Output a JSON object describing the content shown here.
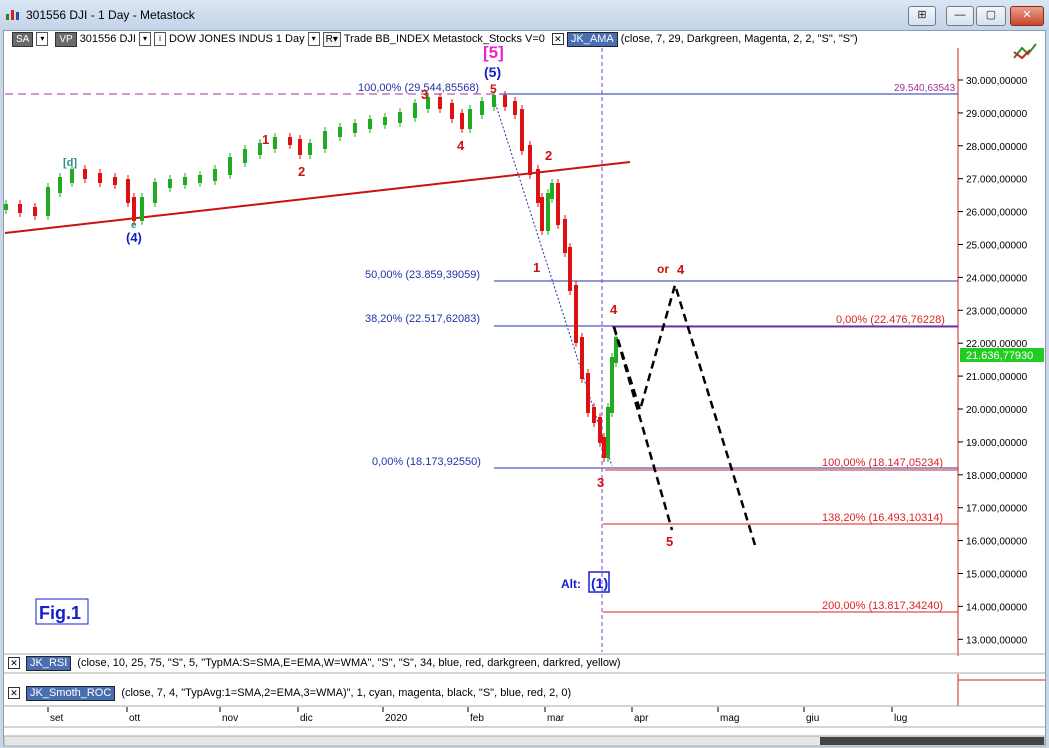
{
  "window": {
    "title": "301556 DJI - 1 Day - Metastock",
    "buttons": [
      "⊞",
      "—",
      "▢",
      "✕"
    ]
  },
  "toolbar": {
    "sa": "SA",
    "vp": "VP",
    "symbol": "301556 DJI",
    "name": "DOW JONES INDUS",
    "period": "1 Day",
    "r": "R",
    "params": "Trade  BB_INDEX  Metastock_Stocks  V=0",
    "indicator": "JK_AMA",
    "indicator_params": "(close,  7,  29,  Darkgreen,  Magenta,  2,  2,  \"S\",  \"S\")"
  },
  "price_scale": {
    "ticks": [
      "30.000,00000",
      "29.000,00000",
      "28.000,00000",
      "27.000,00000",
      "26.000,00000",
      "25.000,00000",
      "24.000,00000",
      "23.000,00000",
      "22.000,00000",
      "21.000,00000",
      "20.000,00000",
      "19.000,00000",
      "18.000,00000",
      "17.000,00000",
      "16.000,00000",
      "15.000,00000",
      "14.000,00000",
      "13.000,00000"
    ],
    "current": "21.636,77930"
  },
  "time_axis": [
    "set",
    "ott",
    "nov",
    "dic",
    "2020",
    "feb",
    "mar",
    "apr",
    "mag",
    "giu",
    "lug"
  ],
  "fib_levels": {
    "f100": "100,00% (29.544,85568)",
    "f50": "50,00% (23.859,39059)",
    "f382": "38,20% (22.517,62083)",
    "f0": "0,00% (18.173,92550)",
    "top_right": "29.540,63543",
    "p0": "0,00% (22.476,76228)",
    "p100": "100,00% (18.147,05234)",
    "p1382": "138,20% (16.493,10314)",
    "p200": "200,00% (13.817,34240)"
  },
  "wave_labels": {
    "big5": "[5]",
    "w5": "(5)",
    "d": "[d]",
    "e": "e",
    "w4": "(4)",
    "w1": "1",
    "w2": "2",
    "w3": "3",
    "w4b": "4",
    "r2": "2",
    "r1": "1",
    "r4": "4",
    "or4": "or",
    "or4b": "4",
    "r3": "3",
    "r5": "5",
    "alt": "Alt:",
    "alt1": "(1)"
  },
  "fig_label": "Fig.1",
  "indicators": [
    {
      "name": "JK_RSI",
      "params": "(close,  10,  25,  75,  \"S\",  5,  \"TypMA:S=SMA,E=EMA,W=WMA\",  \"S\",  \"S\",  34,  blue,  red,  darkgreen,  darkred,  yellow)"
    },
    {
      "name": "JK_Smoth_ROC",
      "params": "(close,  7,  4,  \"TypAvg:1=SMA,2=EMA,3=WMA)\",  1,  cyan,  magenta,  black,  \"S\",  blue,  red,  2,  0)"
    }
  ],
  "colors": {
    "fib_blue": "#2233aa",
    "fib_red": "#dd2222",
    "wave_red": "#cc1111",
    "wave_blue": "#1122cc",
    "wave_magenta": "#ee22cc",
    "up_candle": "#22aa22",
    "down_candle": "#dd1111",
    "current_badge": "#22cc22"
  }
}
